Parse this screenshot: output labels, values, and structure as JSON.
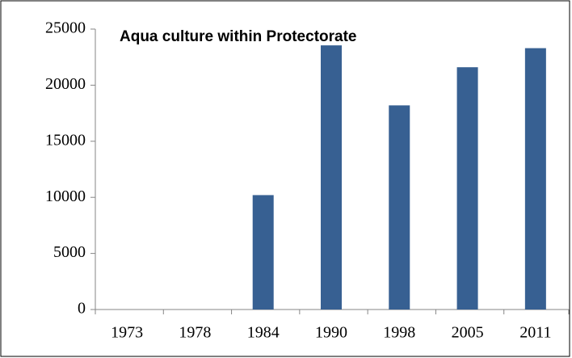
{
  "chart_data": {
    "type": "bar",
    "title": "Aqua culture within Protectorate",
    "categories": [
      "1973",
      "1978",
      "1984",
      "1990",
      "1998",
      "2005",
      "2011"
    ],
    "values": [
      0,
      0,
      10200,
      23550,
      18200,
      21600,
      23300
    ],
    "color": "#376092",
    "ylim": [
      0,
      25000
    ],
    "yticks": [
      0,
      5000,
      10000,
      15000,
      20000,
      25000
    ],
    "grid": false
  }
}
